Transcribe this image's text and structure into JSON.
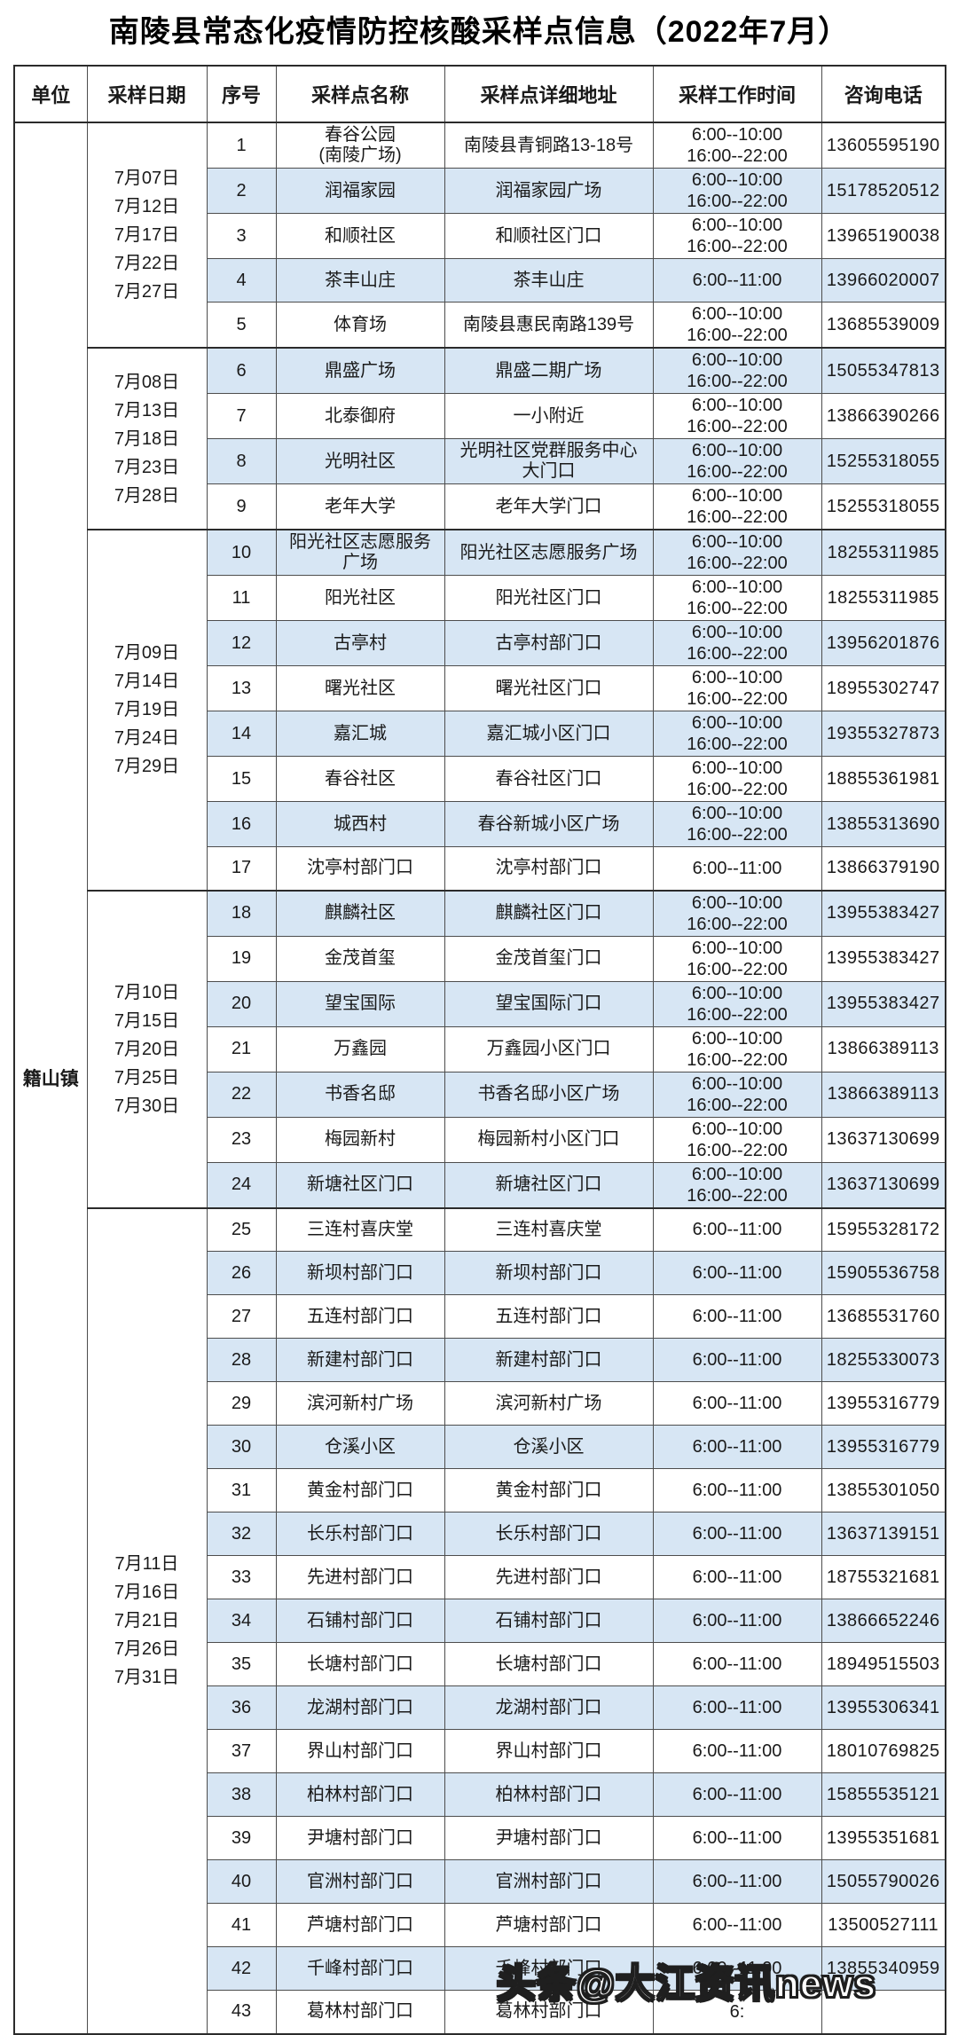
{
  "title": "南陵县常态化疫情防控核酸采样点信息（2022年7月）",
  "watermark": "头条@大江资讯news",
  "colors": {
    "row_alt": "#d7e6f4",
    "border": "#4d4d4d",
    "group_border": "#2b2b2b"
  },
  "table": {
    "headers": {
      "unit": "单位",
      "date": "采样日期",
      "no": "序号",
      "name": "采样点名称",
      "address": "采样点详细地址",
      "time": "采样工作时间",
      "phone": "咨询电话"
    },
    "unit": "籍山镇",
    "groups": [
      {
        "dates": [
          "7月07日",
          "7月12日",
          "7月17日",
          "7月22日",
          "7月27日"
        ],
        "rows": [
          {
            "no": "1",
            "name": "春谷公园\n(南陵广场)",
            "address": "南陵县青铜路13-18号",
            "time": "6:00--10:00\n16:00--22:00",
            "phone": "13605595190"
          },
          {
            "no": "2",
            "name": "润福家园",
            "address": "润福家园广场",
            "time": "6:00--10:00\n16:00--22:00",
            "phone": "15178520512"
          },
          {
            "no": "3",
            "name": "和顺社区",
            "address": "和顺社区门口",
            "time": "6:00--10:00\n16:00--22:00",
            "phone": "13965190038"
          },
          {
            "no": "4",
            "name": "茶丰山庄",
            "address": "茶丰山庄",
            "time": "6:00--11:00",
            "phone": "13966020007"
          },
          {
            "no": "5",
            "name": "体育场",
            "address": "南陵县惠民南路139号",
            "time": "6:00--10:00\n16:00--22:00",
            "phone": "13685539009"
          }
        ]
      },
      {
        "dates": [
          "7月08日",
          "7月13日",
          "7月18日",
          "7月23日",
          "7月28日"
        ],
        "rows": [
          {
            "no": "6",
            "name": "鼎盛广场",
            "address": "鼎盛二期广场",
            "time": "6:00--10:00\n16:00--22:00",
            "phone": "15055347813"
          },
          {
            "no": "7",
            "name": "北泰御府",
            "address": "一小附近",
            "time": "6:00--10:00\n16:00--22:00",
            "phone": "13866390266"
          },
          {
            "no": "8",
            "name": "光明社区",
            "address": "光明社区党群服务中心\n大门口",
            "time": "6:00--10:00\n16:00--22:00",
            "phone": "15255318055"
          },
          {
            "no": "9",
            "name": "老年大学",
            "address": "老年大学门口",
            "time": "6:00--10:00\n16:00--22:00",
            "phone": "15255318055"
          }
        ]
      },
      {
        "dates": [
          "7月09日",
          "7月14日",
          "7月19日",
          "7月24日",
          "7月29日"
        ],
        "rows": [
          {
            "no": "10",
            "name": "阳光社区志愿服务\n广场",
            "address": "阳光社区志愿服务广场",
            "time": "6:00--10:00\n16:00--22:00",
            "phone": "18255311985"
          },
          {
            "no": "11",
            "name": "阳光社区",
            "address": "阳光社区门口",
            "time": "6:00--10:00\n16:00--22:00",
            "phone": "18255311985"
          },
          {
            "no": "12",
            "name": "古亭村",
            "address": "古亭村部门口",
            "time": "6:00--10:00\n16:00--22:00",
            "phone": "13956201876"
          },
          {
            "no": "13",
            "name": "曙光社区",
            "address": "曙光社区门口",
            "time": "6:00--10:00\n16:00--22:00",
            "phone": "18955302747"
          },
          {
            "no": "14",
            "name": "嘉汇城",
            "address": "嘉汇城小区门口",
            "time": "6:00--10:00\n16:00--22:00",
            "phone": "19355327873"
          },
          {
            "no": "15",
            "name": "春谷社区",
            "address": "春谷社区门口",
            "time": "6:00--10:00\n16:00--22:00",
            "phone": "18855361981"
          },
          {
            "no": "16",
            "name": "城西村",
            "address": "春谷新城小区广场",
            "time": "6:00--10:00\n16:00--22:00",
            "phone": "13855313690"
          },
          {
            "no": "17",
            "name": "沈亭村部门口",
            "address": "沈亭村部门口",
            "time": "6:00--11:00",
            "phone": "13866379190"
          }
        ]
      },
      {
        "dates": [
          "7月10日",
          "7月15日",
          "7月20日",
          "7月25日",
          "7月30日"
        ],
        "rows": [
          {
            "no": "18",
            "name": "麒麟社区",
            "address": "麒麟社区门口",
            "time": "6:00--10:00\n16:00--22:00",
            "phone": "13955383427"
          },
          {
            "no": "19",
            "name": "金茂首玺",
            "address": "金茂首玺门口",
            "time": "6:00--10:00\n16:00--22:00",
            "phone": "13955383427"
          },
          {
            "no": "20",
            "name": "望宝国际",
            "address": "望宝国际门口",
            "time": "6:00--10:00\n16:00--22:00",
            "phone": "13955383427"
          },
          {
            "no": "21",
            "name": "万鑫园",
            "address": "万鑫园小区门口",
            "time": "6:00--10:00\n16:00--22:00",
            "phone": "13866389113"
          },
          {
            "no": "22",
            "name": "书香名邸",
            "address": "书香名邸小区广场",
            "time": "6:00--10:00\n16:00--22:00",
            "phone": "13866389113"
          },
          {
            "no": "23",
            "name": "梅园新村",
            "address": "梅园新村小区门口",
            "time": "6:00--10:00\n16:00--22:00",
            "phone": "13637130699"
          },
          {
            "no": "24",
            "name": "新塘社区门口",
            "address": "新塘社区门口",
            "time": "6:00--10:00\n16:00--22:00",
            "phone": "13637130699"
          }
        ]
      },
      {
        "dates": [
          "7月11日",
          "7月16日",
          "7月21日",
          "7月26日",
          "7月31日"
        ],
        "rows": [
          {
            "no": "25",
            "name": "三连村喜庆堂",
            "address": "三连村喜庆堂",
            "time": "6:00--11:00",
            "phone": "15955328172"
          },
          {
            "no": "26",
            "name": "新坝村部门口",
            "address": "新坝村部门口",
            "time": "6:00--11:00",
            "phone": "15905536758"
          },
          {
            "no": "27",
            "name": "五连村部门口",
            "address": "五连村部门口",
            "time": "6:00--11:00",
            "phone": "13685531760"
          },
          {
            "no": "28",
            "name": "新建村部门口",
            "address": "新建村部门口",
            "time": "6:00--11:00",
            "phone": "18255330073"
          },
          {
            "no": "29",
            "name": "滨河新村广场",
            "address": "滨河新村广场",
            "time": "6:00--11:00",
            "phone": "13955316779"
          },
          {
            "no": "30",
            "name": "仓溪小区",
            "address": "仓溪小区",
            "time": "6:00--11:00",
            "phone": "13955316779"
          },
          {
            "no": "31",
            "name": "黄金村部门口",
            "address": "黄金村部门口",
            "time": "6:00--11:00",
            "phone": "13855301050"
          },
          {
            "no": "32",
            "name": "长乐村部门口",
            "address": "长乐村部门口",
            "time": "6:00--11:00",
            "phone": "13637139151"
          },
          {
            "no": "33",
            "name": "先进村部门口",
            "address": "先进村部门口",
            "time": "6:00--11:00",
            "phone": "18755321681"
          },
          {
            "no": "34",
            "name": "石铺村部门口",
            "address": "石铺村部门口",
            "time": "6:00--11:00",
            "phone": "13866652246"
          },
          {
            "no": "35",
            "name": "长塘村部门口",
            "address": "长塘村部门口",
            "time": "6:00--11:00",
            "phone": "18949515503"
          },
          {
            "no": "36",
            "name": "龙湖村部门口",
            "address": "龙湖村部门口",
            "time": "6:00--11:00",
            "phone": "13955306341"
          },
          {
            "no": "37",
            "name": "界山村部门口",
            "address": "界山村部门口",
            "time": "6:00--11:00",
            "phone": "18010769825"
          },
          {
            "no": "38",
            "name": "柏林村部门口",
            "address": "柏林村部门口",
            "time": "6:00--11:00",
            "phone": "15855535121"
          },
          {
            "no": "39",
            "name": "尹塘村部门口",
            "address": "尹塘村部门口",
            "time": "6:00--11:00",
            "phone": "13955351681"
          },
          {
            "no": "40",
            "name": "官洲村部门口",
            "address": "官洲村部门口",
            "time": "6:00--11:00",
            "phone": "15055790026"
          },
          {
            "no": "41",
            "name": "芦塘村部门口",
            "address": "芦塘村部门口",
            "time": "6:00--11:00",
            "phone": "13500527111"
          },
          {
            "no": "42",
            "name": "千峰村部门口",
            "address": "千峰村部门口",
            "time": "6:00--11:00",
            "phone": "13855340959"
          },
          {
            "no": "43",
            "name": "葛林村部门口",
            "address": "葛林村部门口",
            "time": "6:",
            "phone": ""
          }
        ]
      }
    ]
  }
}
